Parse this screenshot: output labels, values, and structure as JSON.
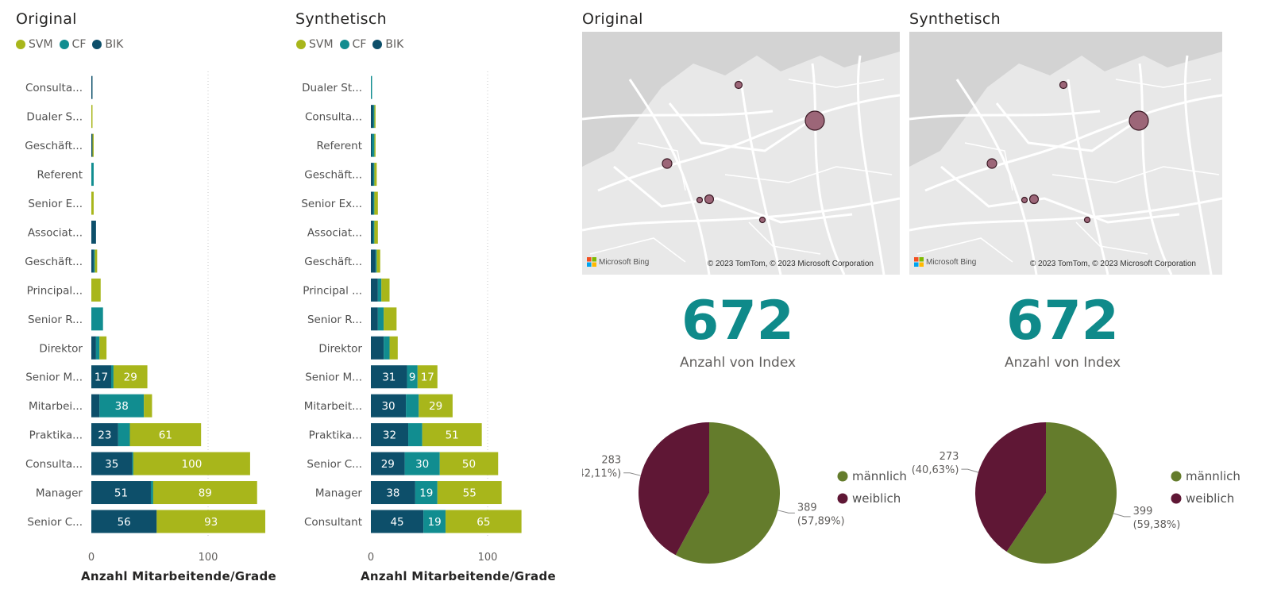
{
  "colors": {
    "SVM": "#a8b61b",
    "CF": "#118d90",
    "BIK": "#0d4f6a",
    "maennlich": "#647c2c",
    "weiblich": "#5f1735",
    "kpi": "#0f8a8a",
    "dot": "#9c6678"
  },
  "bar_panels": [
    {
      "title": "Original",
      "xlabel": "Anzahl Mitarbeitende/Grade",
      "legend": [
        "SVM",
        "CF",
        "BIK"
      ]
    },
    {
      "title": "Synthetisch",
      "xlabel": "Anzahl Mitarbeitende/Grade",
      "legend": [
        "SVM",
        "CF",
        "BIK"
      ]
    }
  ],
  "map_panels": [
    {
      "title": "Original",
      "logo": "Microsoft Bing",
      "attribution": "© 2023 TomTom, © 2023 Microsoft Corporation"
    },
    {
      "title": "Synthetisch",
      "logo": "Microsoft Bing",
      "attribution": "© 2023 TomTom, © 2023 Microsoft Corporation"
    }
  ],
  "kpis": [
    {
      "value": "672",
      "label": "Anzahl von Index"
    },
    {
      "value": "672",
      "label": "Anzahl von Index"
    }
  ],
  "chart_data": [
    {
      "type": "bar",
      "orientation": "horizontal",
      "stacked": true,
      "title": "",
      "xlabel": "Anzahl Mitarbeitende/Grade",
      "ylabel": "",
      "xlim": [
        0,
        150
      ],
      "xticks": [
        0,
        100
      ],
      "grid": true,
      "categories": [
        "Consulta...",
        "Dualer S...",
        "Geschäft...",
        "Referent",
        "Senior E...",
        "Associat...",
        "Geschäft...",
        "Principal...",
        "Senior R...",
        "Direktor",
        "Senior M...",
        "Mitarbei...",
        "Praktika...",
        "Consulta...",
        "Manager",
        "Senior C..."
      ],
      "series": [
        {
          "name": "BIK",
          "values": [
            1,
            0,
            1,
            0,
            0,
            4,
            2,
            0,
            0,
            4,
            17,
            7,
            23,
            35,
            51,
            56
          ],
          "labels": [
            null,
            null,
            null,
            null,
            null,
            null,
            null,
            null,
            null,
            null,
            "17",
            null,
            "23",
            "35",
            "51",
            "56"
          ]
        },
        {
          "name": "CF",
          "values": [
            0,
            0,
            0,
            2,
            0,
            0,
            1,
            0,
            10,
            3,
            2,
            38,
            10,
            1,
            2,
            0
          ],
          "labels": [
            null,
            null,
            null,
            null,
            null,
            null,
            null,
            null,
            null,
            null,
            null,
            "38",
            null,
            null,
            null,
            null
          ]
        },
        {
          "name": "SVM",
          "values": [
            0,
            1,
            1,
            0,
            2,
            0,
            2,
            8,
            0,
            6,
            29,
            7,
            61,
            100,
            89,
            93
          ],
          "labels": [
            null,
            null,
            null,
            null,
            null,
            null,
            null,
            null,
            null,
            null,
            "29",
            null,
            "61",
            "100",
            "89",
            "93"
          ]
        }
      ]
    },
    {
      "type": "bar",
      "orientation": "horizontal",
      "stacked": true,
      "title": "",
      "xlabel": "Anzahl Mitarbeitende/Grade",
      "ylabel": "",
      "xlim": [
        0,
        150
      ],
      "xticks": [
        0,
        100
      ],
      "grid": true,
      "categories": [
        "Dualer St...",
        "Consulta...",
        "Referent",
        "Geschäft...",
        "Senior Ex...",
        "Associat...",
        "Geschäft...",
        "Principal ...",
        "Senior R...",
        "Direktor",
        "Senior M...",
        "Mitarbeit...",
        "Praktika...",
        "Senior C...",
        "Manager",
        "Consultant"
      ],
      "series": [
        {
          "name": "BIK",
          "values": [
            0,
            2,
            1,
            2,
            2,
            2,
            4,
            6,
            6,
            11,
            31,
            30,
            32,
            29,
            38,
            45
          ],
          "labels": [
            null,
            null,
            null,
            null,
            null,
            null,
            null,
            null,
            null,
            null,
            "31",
            "30",
            "32",
            "29",
            "38",
            "45"
          ]
        },
        {
          "name": "CF",
          "values": [
            1,
            1,
            2,
            1,
            1,
            1,
            1,
            3,
            5,
            5,
            9,
            11,
            12,
            30,
            19,
            19
          ],
          "labels": [
            null,
            null,
            null,
            null,
            null,
            null,
            null,
            null,
            null,
            null,
            "9",
            null,
            null,
            "30",
            "19",
            "19"
          ]
        },
        {
          "name": "SVM",
          "values": [
            0,
            1,
            1,
            2,
            3,
            3,
            3,
            7,
            11,
            7,
            17,
            29,
            51,
            50,
            55,
            65
          ],
          "labels": [
            null,
            null,
            null,
            null,
            null,
            null,
            null,
            null,
            null,
            null,
            "17",
            "29",
            "51",
            "50",
            "55",
            "65"
          ]
        }
      ]
    },
    {
      "type": "pie",
      "title": "",
      "categories": [
        "männlich",
        "weiblich"
      ],
      "values": [
        389,
        283
      ],
      "labels": [
        "389",
        "283"
      ],
      "percents": [
        "(57,89%)",
        "(42,11%)"
      ],
      "legend": [
        "männlich",
        "weiblich"
      ],
      "legend_position": "right"
    },
    {
      "type": "pie",
      "title": "",
      "categories": [
        "männlich",
        "weiblich"
      ],
      "values": [
        399,
        273
      ],
      "labels": [
        "399",
        "273"
      ],
      "percents": [
        "(59,38%)",
        "(40,63%)"
      ],
      "legend": [
        "männlich",
        "weiblich"
      ],
      "legend_position": "right"
    }
  ]
}
